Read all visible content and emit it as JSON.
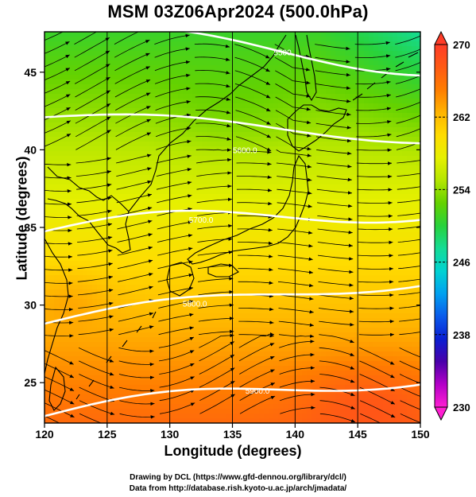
{
  "title": "MSM 03Z06Apr2024 (500.0hPa)",
  "xaxis": {
    "label": "Longitude (degrees)",
    "ticks": [
      120,
      125,
      130,
      135,
      140,
      145,
      150
    ],
    "range": [
      120,
      150
    ]
  },
  "yaxis": {
    "label": "Latitude  (degrees)",
    "ticks": [
      25,
      30,
      35,
      40,
      45
    ],
    "range": [
      22.4,
      47.6
    ]
  },
  "colorbar": {
    "ticks": [
      270,
      262,
      254,
      246,
      238,
      230
    ],
    "range": [
      230,
      270
    ],
    "palette": [
      "#ff1ed2",
      "#b400c8",
      "#4a00aa",
      "#0a1ed2",
      "#0a5aeb",
      "#00a0f0",
      "#00d2d2",
      "#14dc96",
      "#28d23c",
      "#64d200",
      "#b4e600",
      "#e6f000",
      "#ffdc00",
      "#ffb400",
      "#ff7d00",
      "#ff5a14",
      "#ff3c28"
    ]
  },
  "contours": [
    {
      "label": "5500",
      "value": 5500
    },
    {
      "label": "5600.0",
      "value": 5600
    },
    {
      "label": "5700.0",
      "value": 5700
    },
    {
      "label": "5800.0",
      "value": 5800
    },
    {
      "label": "5900.0",
      "value": 5900
    }
  ],
  "credits": {
    "line1": "Drawing by DCL (https://www.gfd-dennou.org/library/dcl/)",
    "line2": "Data from http://database.rish.kyoto-u.ac.jp/arch/jmadata/"
  }
}
